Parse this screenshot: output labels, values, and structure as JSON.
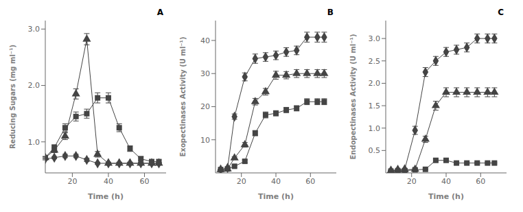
{
  "chart_data": [
    {
      "type": "line",
      "annotations": [
        "A"
      ],
      "xlabel": "Time (h)",
      "ylabel": "Reducing Sugars (mg ml⁻¹)",
      "xlim": [
        5,
        72
      ],
      "ylim": [
        0.45,
        3.15
      ],
      "xticks": [
        20,
        40,
        60
      ],
      "yticks": [
        {
          "value": 1,
          "label": "1.0"
        },
        {
          "value": 2,
          "label": "2.0"
        },
        {
          "value": 3,
          "label": "3.0"
        }
      ],
      "x": [
        5,
        10,
        16,
        22,
        28,
        34,
        40,
        46,
        52,
        58,
        64,
        68
      ],
      "series": [
        {
          "marker": "diamond",
          "color": "#444444",
          "values": [
            0.7,
            0.72,
            0.75,
            0.75,
            0.68,
            0.62,
            0.62,
            0.62,
            0.62,
            0.62,
            0.62,
            0.62
          ],
          "yerr": [
            0.02,
            0.02,
            0.03,
            0.03,
            0.03,
            0.02,
            0.02,
            0.02,
            0.02,
            0.02,
            0.02,
            0.02
          ]
        },
        {
          "marker": "triangle",
          "color": "#444444",
          "values": [
            0.72,
            0.85,
            1.1,
            1.85,
            2.82,
            0.78,
            0.62,
            0.62,
            0.62,
            0.62,
            0.62,
            0.62
          ],
          "yerr": [
            0.02,
            0.04,
            0.06,
            0.09,
            0.1,
            0.05,
            0.02,
            0.02,
            0.02,
            0.02,
            0.02,
            0.02
          ]
        },
        {
          "marker": "square",
          "color": "#444444",
          "values": [
            0.72,
            0.9,
            1.25,
            1.45,
            1.5,
            1.78,
            1.78,
            1.25,
            0.88,
            0.7,
            0.65,
            0.65
          ],
          "yerr": [
            0.02,
            0.05,
            0.07,
            0.08,
            0.08,
            0.09,
            0.09,
            0.07,
            0.05,
            0.04,
            0.03,
            0.03
          ]
        }
      ]
    },
    {
      "type": "line",
      "annotations": [
        "B"
      ],
      "xlabel": "Time (h)",
      "ylabel": "Exopectinases Activity (U ml⁻¹)",
      "xlim": [
        5,
        75
      ],
      "ylim": [
        0,
        46
      ],
      "xticks": [
        20,
        40,
        60
      ],
      "yticks": [
        10,
        20,
        30,
        40
      ],
      "x": [
        8,
        12,
        16,
        22,
        28,
        34,
        40,
        46,
        52,
        58,
        64,
        68
      ],
      "series": [
        {
          "marker": "diamond",
          "color": "#444444",
          "values": [
            1.0,
            1.5,
            17.0,
            29.0,
            34.5,
            35.0,
            35.5,
            36.5,
            37.0,
            41.0,
            41.0,
            41.0
          ],
          "yerr": [
            0.1,
            0.2,
            0.8,
            1.2,
            1.4,
            1.3,
            1.3,
            1.3,
            1.3,
            1.5,
            1.5,
            1.5
          ]
        },
        {
          "marker": "triangle",
          "color": "#444444",
          "values": [
            1.0,
            1.2,
            4.5,
            8.5,
            21.5,
            24.5,
            29.5,
            29.5,
            30.0,
            30.0,
            30.0,
            30.0
          ],
          "yerr": [
            0.1,
            0.2,
            0.4,
            0.7,
            1.0,
            1.0,
            1.2,
            1.1,
            1.2,
            1.2,
            1.2,
            1.2
          ]
        },
        {
          "marker": "square",
          "color": "#444444",
          "values": [
            1.0,
            1.2,
            2.0,
            3.5,
            12.0,
            17.5,
            18.0,
            19.0,
            19.5,
            21.5,
            21.5,
            21.5
          ],
          "yerr": [
            0.1,
            0.2,
            0.3,
            0.4,
            0.8,
            0.9,
            0.8,
            0.8,
            0.8,
            0.9,
            0.9,
            0.9
          ]
        }
      ]
    },
    {
      "type": "line",
      "annotations": [
        "C"
      ],
      "xlabel": "Time (h)",
      "ylabel": "Endopectinases Activity (U ml⁻¹)",
      "xlim": [
        5,
        75
      ],
      "ylim": [
        0,
        3.4
      ],
      "xticks": [
        20,
        40,
        60
      ],
      "yticks": [
        0.5,
        {
          "value": 1,
          "label": "1.0"
        },
        1.5,
        {
          "value": 2,
          "label": "2.0"
        },
        2.5,
        {
          "value": 3,
          "label": "3.0"
        }
      ],
      "x": [
        8,
        12,
        16,
        22,
        28,
        34,
        40,
        46,
        52,
        58,
        64,
        68
      ],
      "series": [
        {
          "marker": "diamond",
          "color": "#444444",
          "values": [
            0.05,
            0.07,
            0.08,
            0.95,
            2.25,
            2.5,
            2.7,
            2.75,
            2.8,
            3.0,
            3.0,
            3.0
          ],
          "yerr": [
            0.01,
            0.01,
            0.02,
            0.09,
            0.1,
            0.1,
            0.1,
            0.1,
            0.1,
            0.1,
            0.1,
            0.1
          ]
        },
        {
          "marker": "triangle",
          "color": "#444444",
          "values": [
            0.05,
            0.06,
            0.07,
            0.08,
            0.75,
            1.5,
            1.8,
            1.8,
            1.8,
            1.8,
            1.8,
            1.8
          ],
          "yerr": [
            0.01,
            0.01,
            0.01,
            0.02,
            0.07,
            0.1,
            0.1,
            0.1,
            0.1,
            0.1,
            0.1,
            0.1
          ]
        },
        {
          "marker": "square",
          "color": "#444444",
          "values": [
            0.04,
            0.05,
            0.05,
            0.07,
            0.08,
            0.28,
            0.28,
            0.22,
            0.22,
            0.22,
            0.22,
            0.22
          ],
          "yerr": [
            0.01,
            0.01,
            0.01,
            0.01,
            0.01,
            0.03,
            0.03,
            0.02,
            0.02,
            0.02,
            0.02,
            0.02
          ]
        }
      ]
    }
  ]
}
